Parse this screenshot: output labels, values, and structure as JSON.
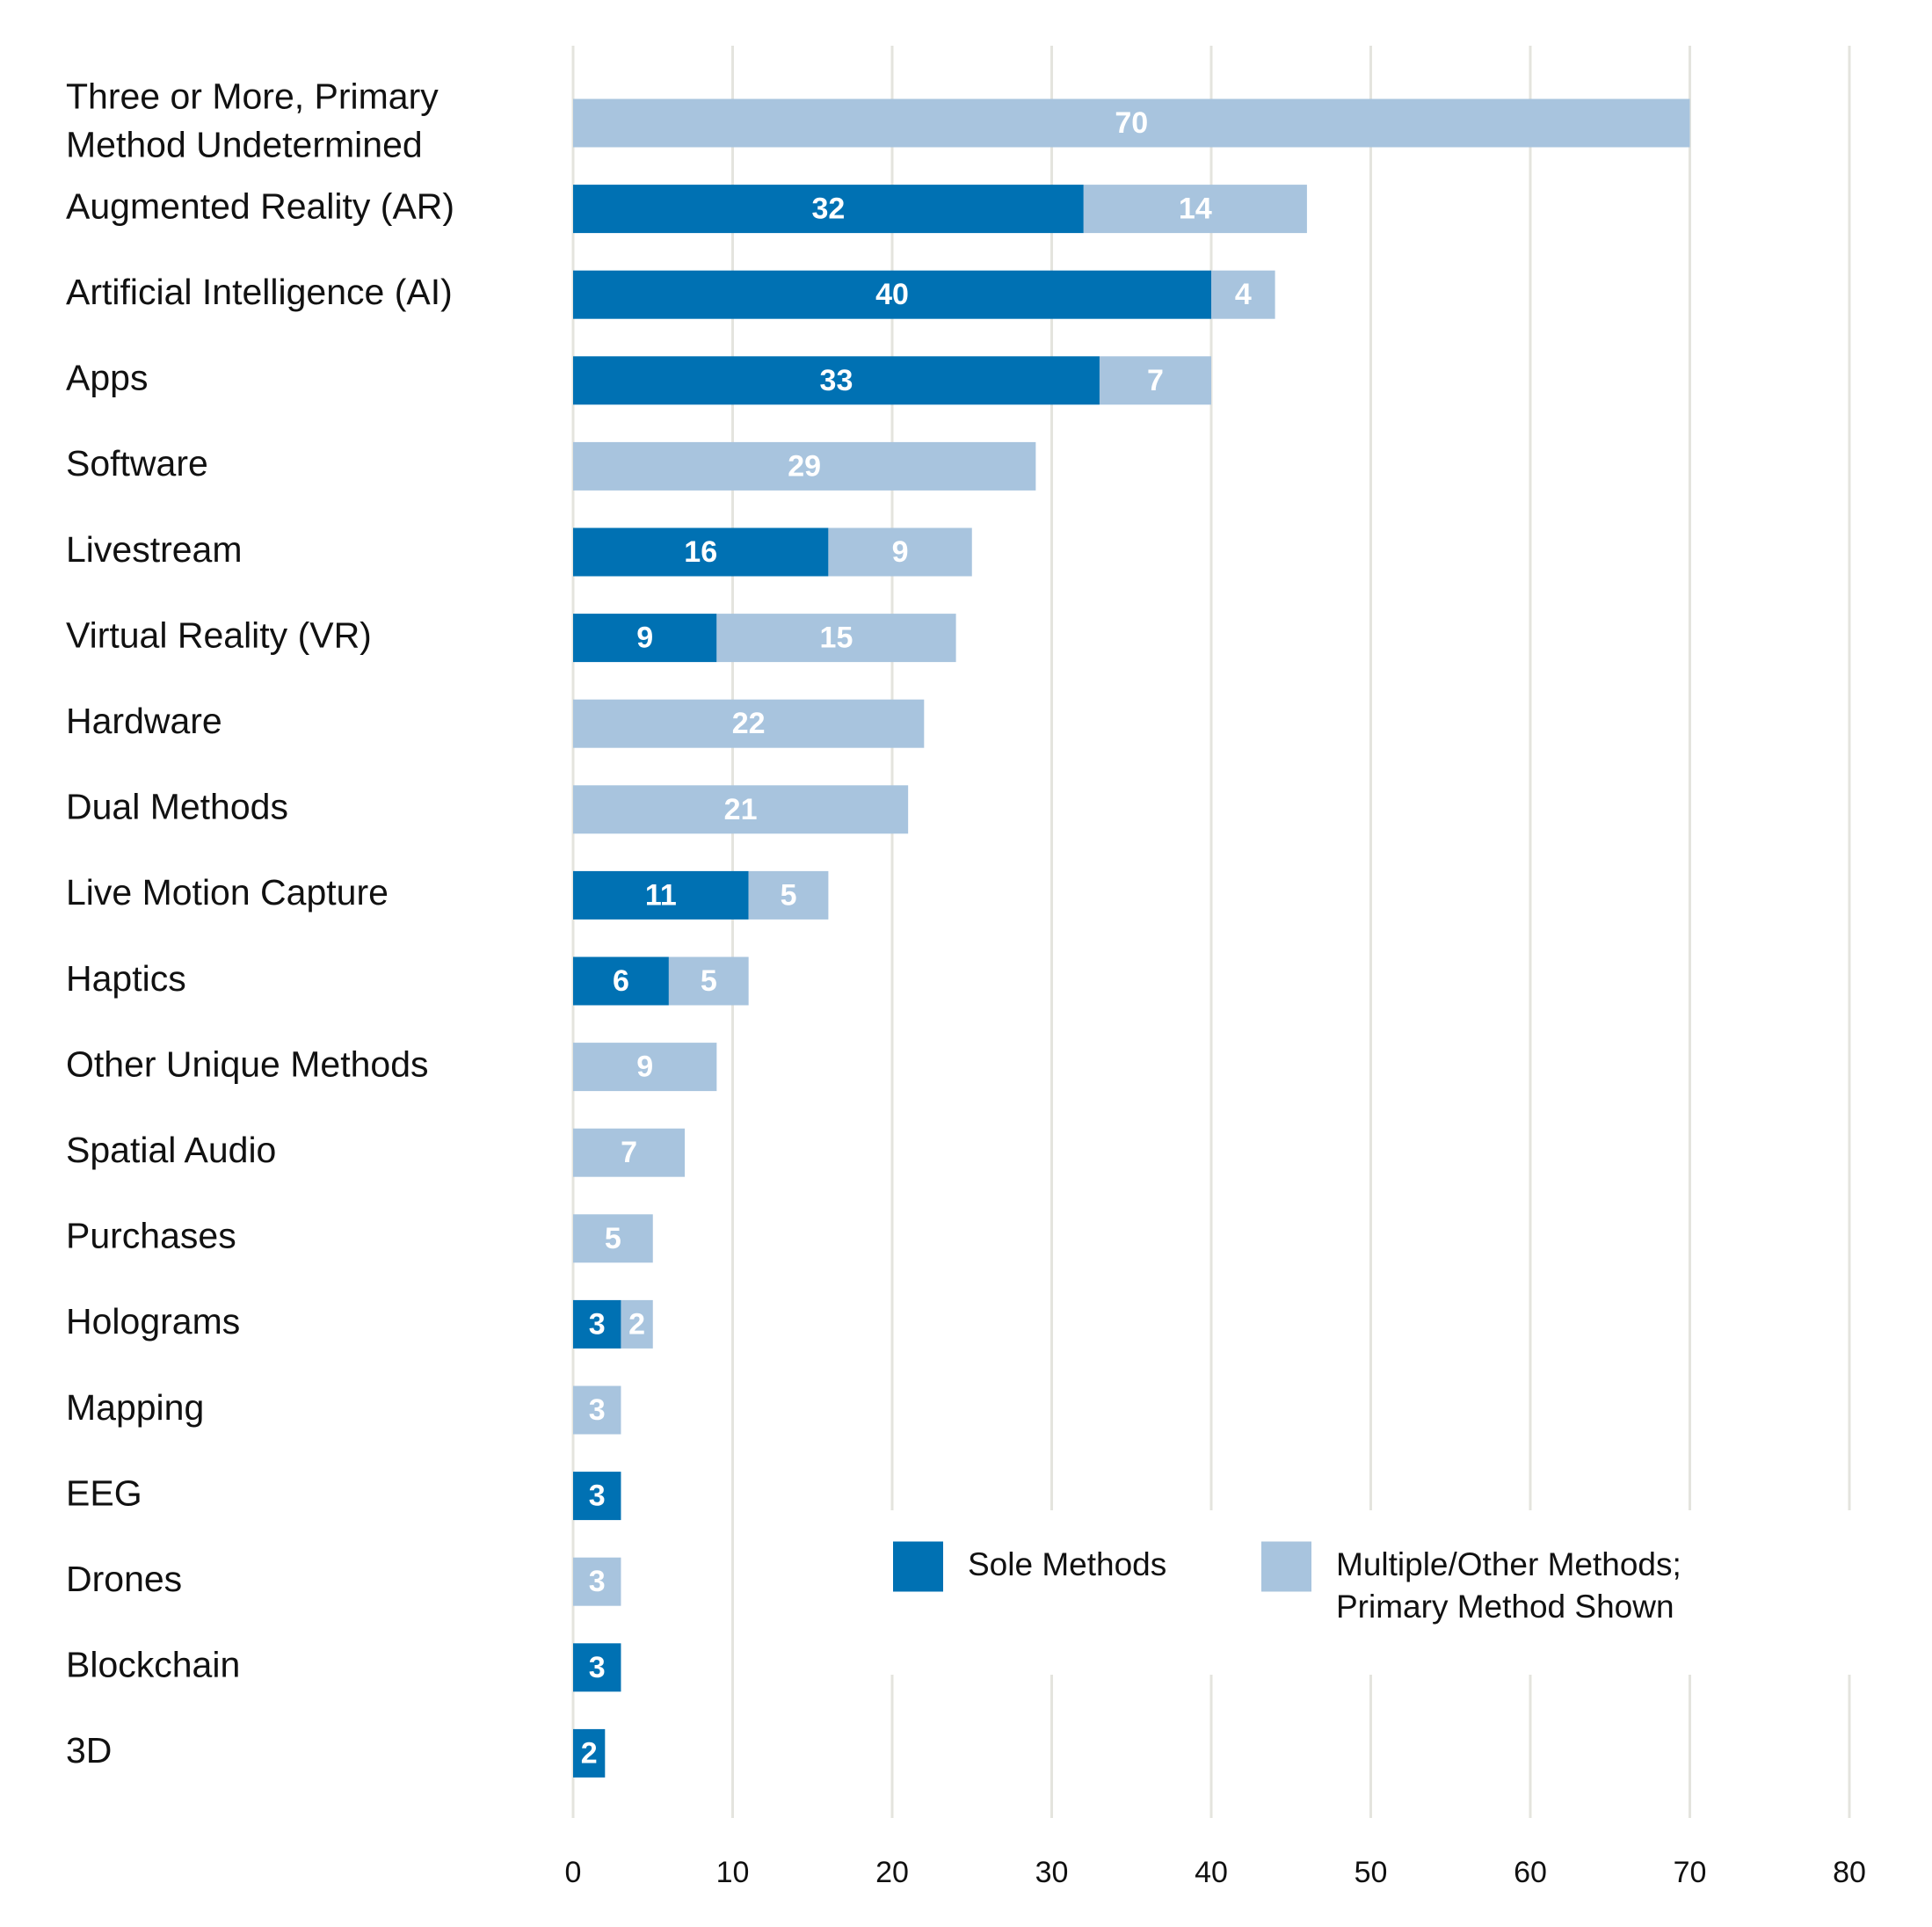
{
  "chart_data": {
    "type": "bar",
    "orientation": "horizontal",
    "stacked": true,
    "categories": [
      [
        "Three or More, Primary",
        "Method Undetermined"
      ],
      [
        "Augmented Reality (AR)"
      ],
      [
        "Artificial Intelligence (AI)"
      ],
      [
        "Apps"
      ],
      [
        "Software"
      ],
      [
        "Livestream"
      ],
      [
        "Virtual Reality (VR)"
      ],
      [
        "Hardware"
      ],
      [
        "Dual Methods"
      ],
      [
        "Live Motion Capture"
      ],
      [
        "Haptics"
      ],
      [
        "Other Unique Methods"
      ],
      [
        "Spatial Audio"
      ],
      [
        "Purchases"
      ],
      [
        "Holograms"
      ],
      [
        "Mapping"
      ],
      [
        "EEG"
      ],
      [
        "Drones"
      ],
      [
        "Blockchain"
      ],
      [
        "3D"
      ]
    ],
    "series": [
      {
        "name": "Sole Methods",
        "color": "#0071b3",
        "values": [
          0,
          32,
          40,
          33,
          0,
          16,
          9,
          0,
          0,
          11,
          6,
          0,
          0,
          0,
          3,
          0,
          3,
          0,
          3,
          2
        ]
      },
      {
        "name": [
          "Multiple/Other Methods;",
          "Primary Method Shown"
        ],
        "color": "#a8c4de",
        "values": [
          70,
          14,
          4,
          7,
          29,
          9,
          15,
          22,
          21,
          5,
          5,
          9,
          7,
          5,
          2,
          3,
          0,
          3,
          0,
          0
        ]
      }
    ],
    "xlim": [
      0,
      80
    ],
    "xticks": [
      "0",
      "10",
      "20",
      "30",
      "40",
      "50",
      "60",
      "70",
      "80"
    ],
    "grid": "vertical",
    "gridColor": "#e4e4de",
    "legend": "bottom-right"
  }
}
